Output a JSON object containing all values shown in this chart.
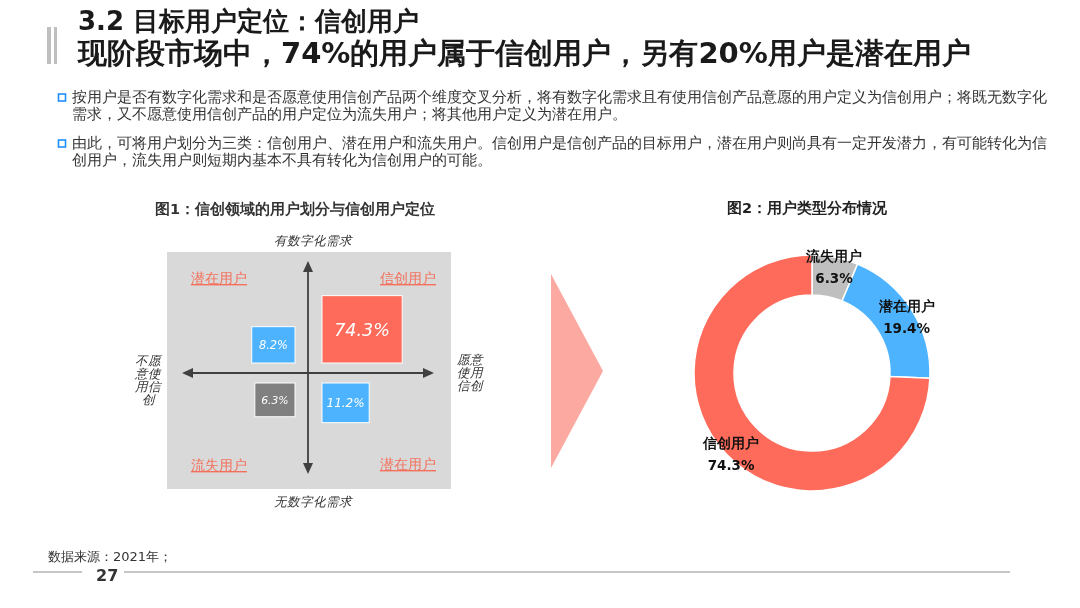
{
  "chart_data": [
    {
      "type": "other",
      "title": "3.2 目标用户定位：信创用户",
      "subtitle": "现阶段市场中，74%的用户属于信创用户，另有20%用户是潜在用户",
      "annotations": [
        "按用户是否有数字化需求和是否愿意使用信创产品两个维度交叉分析，将有数字化需求且有使用信创产品意愿的用户定义为信创用户；将既无数字化需求，又不愿意使用信创产品的用户定位为流失用户；将其他用户定义为潜在用户。",
        "由此，可将用户划分为三类：信创用户、潜在用户和流失用户。信创用户是信创产品的目标用户，潜在用户则尚具有一定开发潜力，有可能转化为信创用户，流失用户则短期内基本不具有转化为信创用户的可能。",
        "数据来源：2021年；",
        "27"
      ]
    },
    {
      "type": "other",
      "title": "图1：信创领域的用户划分与信创用户定位",
      "categories": [
        "潜在用户",
        "信创用户",
        "流失用户",
        "潜在用户"
      ],
      "values": [
        8.2,
        74.3,
        6.3,
        11.2
      ],
      "value_labels": [
        "8.2%",
        "74.3%",
        "6.3%",
        "11.2%"
      ],
      "colors": [
        "#4db3ff",
        "#ff6b5a",
        "#808080",
        "#4db3ff"
      ],
      "annotations": [
        "有数字化需求",
        "无数字化需求",
        "不愿意使用信创",
        "愿意使用信创"
      ]
    },
    {
      "type": "donut",
      "title": "图2：用户类型分布情况",
      "categories": [
        "流失用户",
        "潜在用户",
        "信创用户"
      ],
      "values": [
        6.3,
        19.4,
        74.3
      ],
      "value_labels": [
        "6.3%",
        "19.4%",
        "74.3%"
      ],
      "colors": [
        "#bfbfbf",
        "#4db3ff",
        "#ff6b5a"
      ]
    }
  ]
}
